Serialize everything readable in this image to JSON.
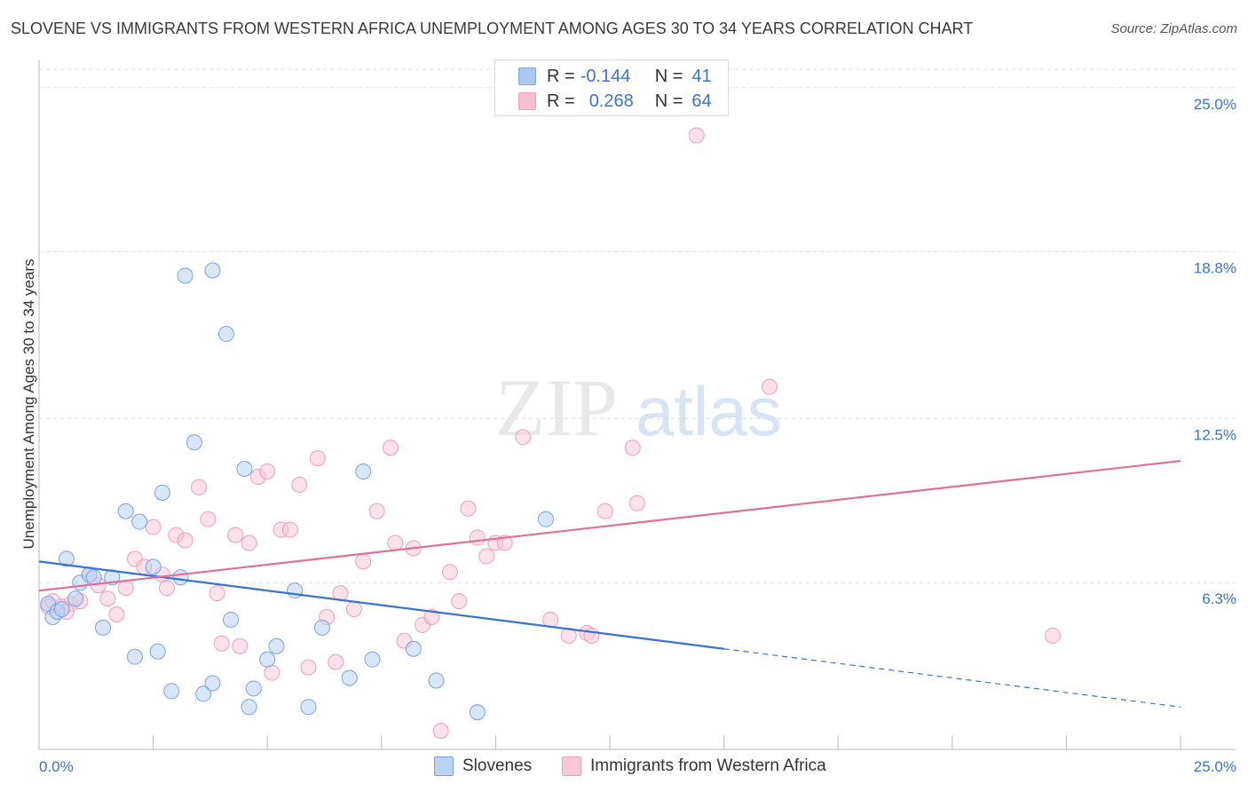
{
  "title": "SLOVENE VS IMMIGRANTS FROM WESTERN AFRICA UNEMPLOYMENT AMONG AGES 30 TO 34 YEARS CORRELATION CHART",
  "source": "Source: ZipAtlas.com",
  "watermark": {
    "zip": "ZIP",
    "atlas": "atlas"
  },
  "legend": {
    "rows": [
      {
        "r_label": "R =",
        "r_value": "-0.144",
        "n_label": "N =",
        "n_value": "41",
        "color": "#a9c8f0",
        "border": "#7aa8e0"
      },
      {
        "r_label": "R =",
        "r_value": "0.268",
        "n_label": "N =",
        "n_value": "64",
        "color": "#f7bfd0",
        "border": "#ec9ab5"
      }
    ]
  },
  "bottom_legend": {
    "slovenes": "Slovenes",
    "immigrants": "Immigrants from Western Africa"
  },
  "colors": {
    "blue_fill": "#b8d2f2",
    "blue_stroke": "#7aa3de",
    "blue_line": "#3574d1",
    "pink_fill": "#f8c8d7",
    "pink_stroke": "#ee9fb9",
    "pink_line": "#e0709a",
    "axis_text": "#3a74d0",
    "grid": "#dddddd"
  },
  "chart_data": {
    "type": "scatter",
    "ylabel": "Unemployment Among Ages 30 to 34 years",
    "xlim": [
      0,
      25
    ],
    "ylim": [
      0,
      25.7
    ],
    "x_tick_labels": [
      "0.0%",
      "25.0%"
    ],
    "y_ticks": [
      {
        "value": 6.3,
        "label": "6.3%"
      },
      {
        "value": 12.5,
        "label": "12.5%"
      },
      {
        "value": 18.8,
        "label": "18.8%"
      },
      {
        "value": 25.0,
        "label": "25.0%"
      }
    ],
    "grid": true,
    "series": [
      {
        "name": "Slovenes",
        "points": [
          [
            0.2,
            5.5
          ],
          [
            0.3,
            5.0
          ],
          [
            0.4,
            5.2
          ],
          [
            0.5,
            5.3
          ],
          [
            0.6,
            7.2
          ],
          [
            0.8,
            5.7
          ],
          [
            0.9,
            6.3
          ],
          [
            1.1,
            6.6
          ],
          [
            1.2,
            6.5
          ],
          [
            1.4,
            4.6
          ],
          [
            1.6,
            6.5
          ],
          [
            1.9,
            9.0
          ],
          [
            2.1,
            3.5
          ],
          [
            2.2,
            8.6
          ],
          [
            2.5,
            6.9
          ],
          [
            2.6,
            3.7
          ],
          [
            2.7,
            9.7
          ],
          [
            2.9,
            2.2
          ],
          [
            3.1,
            6.5
          ],
          [
            3.2,
            17.9
          ],
          [
            3.4,
            11.6
          ],
          [
            3.6,
            2.1
          ],
          [
            3.8,
            18.1
          ],
          [
            3.8,
            2.5
          ],
          [
            4.1,
            15.7
          ],
          [
            4.2,
            4.9
          ],
          [
            4.5,
            10.6
          ],
          [
            4.6,
            1.6
          ],
          [
            4.7,
            2.3
          ],
          [
            5.0,
            3.4
          ],
          [
            5.2,
            3.9
          ],
          [
            5.6,
            6.0
          ],
          [
            5.9,
            1.6
          ],
          [
            6.2,
            4.6
          ],
          [
            6.8,
            2.7
          ],
          [
            7.1,
            10.5
          ],
          [
            7.3,
            3.4
          ],
          [
            8.2,
            3.8
          ],
          [
            8.7,
            2.6
          ],
          [
            9.6,
            1.4
          ],
          [
            11.1,
            8.7
          ]
        ]
      },
      {
        "name": "Immigrants from Western Africa",
        "points": [
          [
            0.2,
            5.4
          ],
          [
            0.3,
            5.6
          ],
          [
            0.5,
            5.4
          ],
          [
            0.7,
            5.5
          ],
          [
            0.9,
            5.6
          ],
          [
            1.1,
            6.6
          ],
          [
            1.3,
            6.2
          ],
          [
            1.5,
            5.7
          ],
          [
            1.7,
            5.1
          ],
          [
            1.9,
            6.1
          ],
          [
            2.1,
            7.2
          ],
          [
            2.3,
            6.9
          ],
          [
            2.5,
            8.4
          ],
          [
            2.7,
            6.6
          ],
          [
            2.8,
            6.1
          ],
          [
            3.0,
            8.1
          ],
          [
            3.2,
            7.9
          ],
          [
            3.5,
            9.9
          ],
          [
            3.7,
            8.7
          ],
          [
            3.9,
            5.9
          ],
          [
            4.0,
            4.0
          ],
          [
            4.3,
            8.1
          ],
          [
            4.4,
            3.9
          ],
          [
            4.6,
            7.8
          ],
          [
            4.8,
            10.3
          ],
          [
            5.0,
            10.5
          ],
          [
            5.1,
            2.9
          ],
          [
            5.3,
            8.3
          ],
          [
            5.5,
            8.3
          ],
          [
            5.7,
            10.0
          ],
          [
            5.9,
            3.1
          ],
          [
            6.1,
            11.0
          ],
          [
            6.3,
            5.0
          ],
          [
            6.5,
            3.3
          ],
          [
            6.6,
            5.9
          ],
          [
            6.9,
            5.3
          ],
          [
            7.1,
            7.1
          ],
          [
            7.4,
            9.0
          ],
          [
            7.7,
            11.4
          ],
          [
            7.8,
            7.8
          ],
          [
            8.0,
            4.1
          ],
          [
            8.2,
            7.6
          ],
          [
            8.4,
            4.7
          ],
          [
            8.6,
            5.0
          ],
          [
            8.8,
            0.7
          ],
          [
            9.0,
            6.7
          ],
          [
            9.2,
            5.6
          ],
          [
            9.4,
            9.1
          ],
          [
            9.6,
            8.0
          ],
          [
            9.8,
            7.3
          ],
          [
            10.0,
            7.8
          ],
          [
            10.2,
            7.8
          ],
          [
            10.6,
            11.8
          ],
          [
            11.2,
            4.9
          ],
          [
            11.6,
            4.3
          ],
          [
            12.0,
            4.4
          ],
          [
            12.1,
            4.3
          ],
          [
            12.4,
            9.0
          ],
          [
            13.0,
            11.4
          ],
          [
            13.1,
            9.3
          ],
          [
            14.4,
            23.2
          ],
          [
            16.0,
            13.7
          ],
          [
            22.2,
            4.3
          ],
          [
            0.6,
            5.2
          ]
        ]
      }
    ],
    "trend_lines": [
      {
        "series": "Slovenes",
        "x0": 0,
        "y0": 7.1,
        "x1": 15.0,
        "y1": 3.8,
        "dashed_to_x": 25,
        "dashed_to_y": 1.6
      },
      {
        "series": "Immigrants from Western Africa",
        "x0": 0,
        "y0": 6.0,
        "x1": 25,
        "y1": 10.9
      }
    ]
  }
}
